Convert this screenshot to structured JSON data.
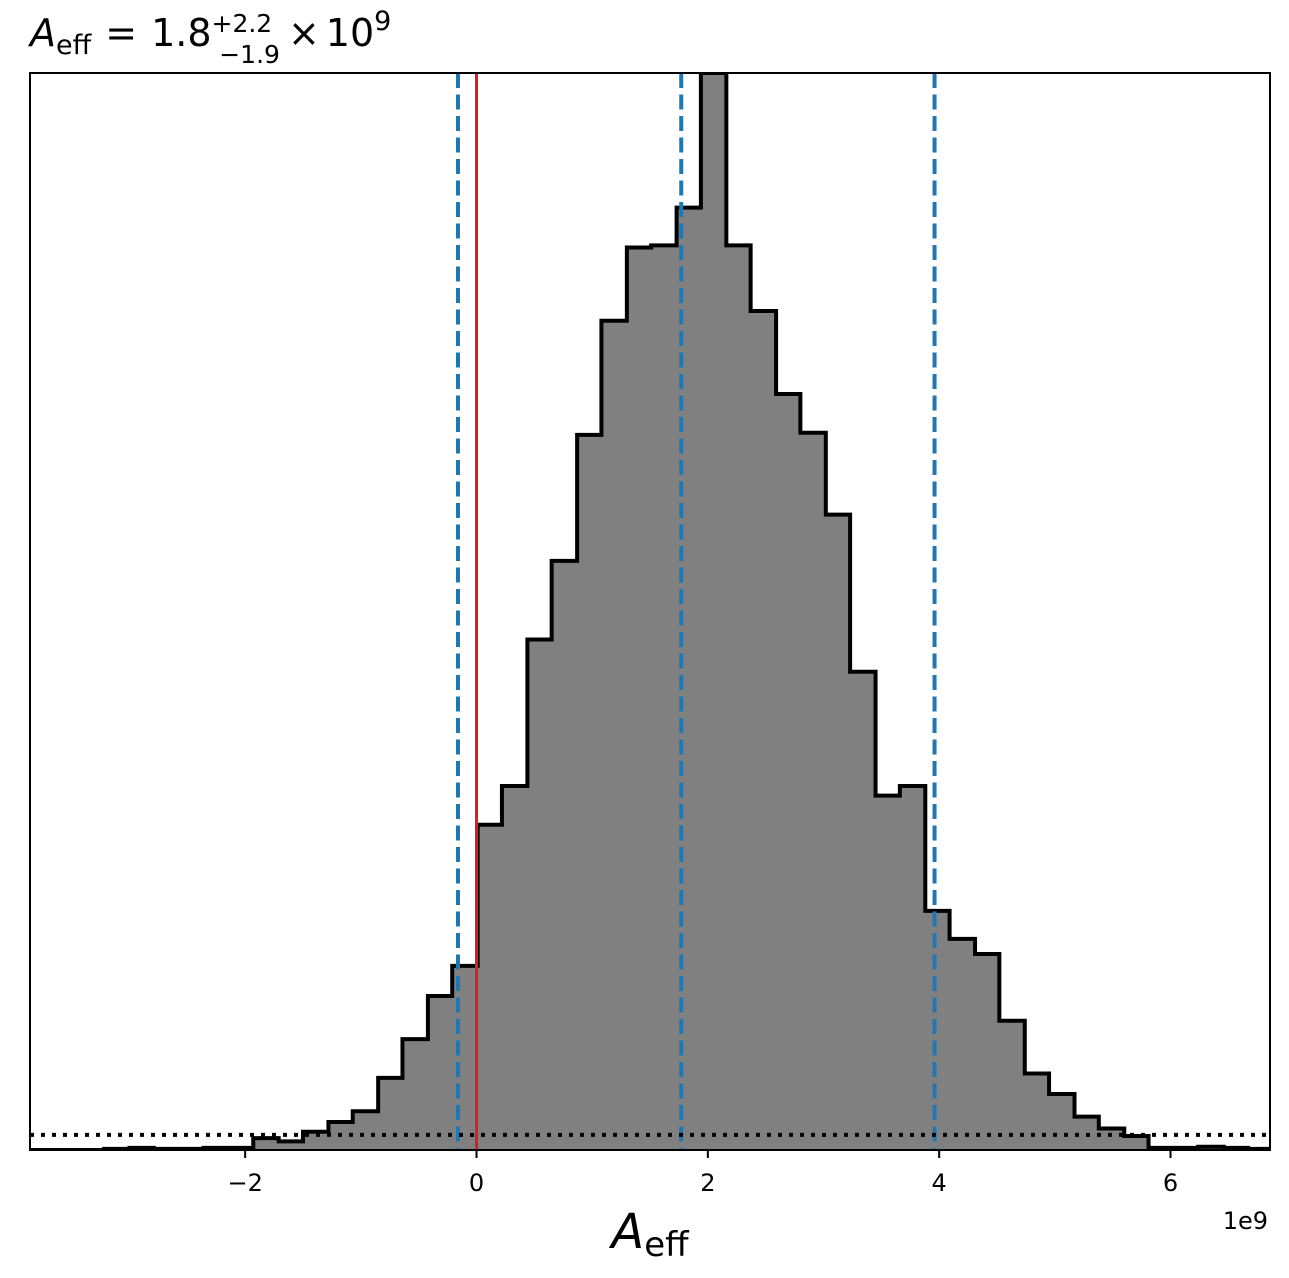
{
  "chart_data": {
    "type": "bar",
    "subtype": "step-histogram",
    "title": {
      "symbol": "A",
      "symbol_sub": "eff",
      "equals": "=",
      "value": "1.8",
      "upper_err": "+2.2",
      "lower_err": "−1.9",
      "times": "×",
      "base": "10",
      "exponent": "9"
    },
    "xlabel": {
      "symbol": "A",
      "symbol_sub": "eff"
    },
    "offset_text": "1e9",
    "xlim": [
      -3.86,
      6.86
    ],
    "ylim": [
      0,
      1.0
    ],
    "x_ticks": [
      {
        "value": -2,
        "label": "−2"
      },
      {
        "value": 0,
        "label": "0"
      },
      {
        "value": 2,
        "label": "2"
      },
      {
        "value": 4,
        "label": "4"
      },
      {
        "value": 6,
        "label": "6"
      }
    ],
    "y_ticks_shown": false,
    "grid": false,
    "histogram": {
      "fill_color": "#808080",
      "edge_color": "#000000",
      "bin_edges": [
        -3.86,
        -3.65,
        -3.43,
        -3.22,
        -3.0,
        -2.79,
        -2.57,
        -2.36,
        -2.14,
        -1.93,
        -1.71,
        -1.5,
        -1.28,
        -1.07,
        -0.85,
        -0.64,
        -0.42,
        -0.21,
        0.01,
        0.22,
        0.44,
        0.65,
        0.87,
        1.08,
        1.3,
        1.51,
        1.73,
        1.94,
        2.16,
        2.37,
        2.59,
        2.8,
        3.02,
        3.23,
        3.45,
        3.66,
        3.88,
        4.09,
        4.31,
        4.52,
        4.74,
        4.95,
        5.17,
        5.38,
        5.6,
        5.81,
        6.03,
        6.24,
        6.46,
        6.67,
        6.86
      ],
      "heights": [
        0.0,
        0.0,
        0.0,
        0.001,
        0.002,
        0.001,
        0.001,
        0.002,
        0.002,
        0.011,
        0.008,
        0.017,
        0.026,
        0.036,
        0.067,
        0.103,
        0.143,
        0.171,
        0.302,
        0.338,
        0.474,
        0.547,
        0.664,
        0.77,
        0.838,
        0.84,
        0.875,
        1.0,
        0.84,
        0.779,
        0.702,
        0.666,
        0.59,
        0.444,
        0.329,
        0.338,
        0.222,
        0.196,
        0.182,
        0.12,
        0.071,
        0.052,
        0.031,
        0.02,
        0.013,
        0.002,
        0.002,
        0.003,
        0.002,
        0.001
      ]
    },
    "reference_lines": [
      {
        "name": "lower-quantile",
        "x": -0.16,
        "color": "#1f77b4",
        "style": "dashed"
      },
      {
        "name": "median",
        "x": 1.77,
        "color": "#1f77b4",
        "style": "dashed"
      },
      {
        "name": "upper-quantile",
        "x": 3.96,
        "color": "#1f77b4",
        "style": "dashed"
      },
      {
        "name": "zero-reference",
        "x": 0.0,
        "color": "#e41a1c",
        "style": "solid"
      }
    ],
    "horizontal_line": {
      "y": 0.014,
      "color": "#000000",
      "style": "dotted"
    }
  }
}
